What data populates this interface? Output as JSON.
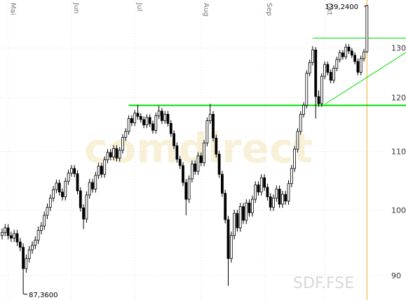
{
  "chart_data": {
    "type": "candlestick",
    "symbol": "SDF.FSE",
    "watermark": "comdirect",
    "log_scale": true,
    "grid": true,
    "ylim": [
      86.5,
      140.5
    ],
    "yticks": [
      90,
      100,
      110,
      120,
      130
    ],
    "categories": [
      null,
      null,
      "Mai",
      null,
      null,
      null,
      null,
      null,
      null,
      null,
      null,
      null,
      null,
      null,
      null,
      null,
      null,
      null,
      null,
      null,
      null,
      null,
      null,
      "Jun",
      null,
      null,
      null,
      null,
      null,
      null,
      null,
      null,
      null,
      null,
      null,
      null,
      null,
      null,
      null,
      null,
      null,
      null,
      null,
      null,
      "Jul",
      null,
      null,
      null,
      null,
      null,
      null,
      null,
      null,
      null,
      null,
      null,
      null,
      null,
      null,
      null,
      null,
      null,
      null,
      null,
      null,
      null,
      "Aug",
      null,
      null,
      null,
      null,
      null,
      null,
      null,
      null,
      null,
      null,
      null,
      null,
      null,
      null,
      null,
      null,
      null,
      null,
      null,
      null,
      "Sep",
      null,
      null,
      null,
      null,
      null,
      null,
      null,
      null,
      null,
      null,
      null,
      null,
      null,
      null,
      null,
      null,
      null,
      null,
      null,
      "Okt",
      null,
      null,
      null,
      null,
      null,
      null,
      null,
      null,
      null,
      null,
      null,
      null,
      null,
      null
    ],
    "open": [
      96.0,
      96.5,
      97.2,
      96.0,
      95.6,
      96.3,
      95.0,
      94.2,
      91.0,
      92.5,
      93.8,
      94.5,
      95.3,
      96.8,
      97.5,
      99.2,
      100.5,
      102.0,
      103.4,
      104.5,
      103.0,
      102.2,
      104.8,
      106.2,
      107.0,
      106.1,
      103.2,
      100.4,
      98.6,
      102.5,
      104.6,
      103.5,
      105.8,
      107.4,
      106.0,
      108.5,
      109.8,
      109.0,
      110.5,
      108.8,
      110.2,
      112.5,
      113.6,
      116.0,
      115.2,
      117.0,
      116.4,
      115.8,
      114.8,
      116.2,
      115.0,
      113.8,
      116.5,
      117.4,
      115.6,
      116.8,
      115.1,
      113.2,
      111.0,
      108.6,
      107.5,
      104.6,
      101.8,
      105.2,
      107.8,
      106.5,
      109.2,
      108.0,
      111.5,
      115.6,
      116.8,
      112.4,
      109.5,
      106.0,
      102.8,
      98.5,
      92.5,
      96.0,
      99.5,
      97.2,
      100.6,
      98.4,
      101.2,
      99.6,
      101.8,
      104.2,
      103.0,
      105.4,
      103.8,
      102.2,
      100.5,
      102.0,
      103.5,
      101.0,
      102.6,
      101.5,
      104.4,
      107.0,
      110.4,
      113.6,
      116.8,
      118.5,
      124.8,
      127.0,
      129.6,
      120.2,
      118.8,
      124.2,
      126.6,
      125.0,
      123.4,
      125.8,
      127.6,
      129.0,
      128.2,
      130.2,
      129.4,
      128.5,
      127.2,
      125.0,
      127.8,
      129.2
    ],
    "high": [
      97.1,
      97.8,
      97.8,
      96.6,
      96.9,
      96.9,
      95.6,
      94.8,
      93.1,
      94.4,
      95.1,
      95.9,
      97.4,
      98.1,
      99.8,
      101.1,
      102.6,
      104.0,
      105.1,
      105.1,
      103.6,
      105.4,
      106.8,
      107.6,
      107.6,
      106.7,
      103.8,
      101.0,
      103.1,
      105.2,
      105.2,
      106.4,
      108.0,
      108.0,
      109.1,
      110.4,
      110.4,
      111.1,
      111.1,
      110.8,
      113.1,
      114.2,
      116.6,
      116.6,
      117.6,
      118.6,
      117.0,
      116.4,
      116.8,
      116.8,
      115.6,
      117.1,
      118.4,
      118.0,
      117.4,
      117.4,
      115.7,
      113.8,
      111.6,
      109.2,
      108.1,
      105.2,
      105.8,
      108.4,
      108.4,
      109.8,
      109.8,
      112.1,
      116.2,
      118.8,
      117.4,
      113.0,
      110.1,
      106.6,
      103.4,
      99.1,
      96.6,
      100.1,
      100.1,
      101.2,
      101.2,
      101.8,
      101.8,
      102.4,
      104.8,
      104.8,
      106.0,
      106.0,
      104.4,
      102.8,
      102.6,
      104.1,
      104.1,
      103.2,
      103.2,
      105.0,
      107.6,
      111.0,
      114.2,
      117.4,
      119.1,
      125.4,
      127.6,
      130.4,
      130.2,
      121.4,
      124.8,
      127.2,
      127.2,
      125.6,
      126.4,
      128.2,
      129.6,
      129.6,
      130.9,
      130.8,
      130.0,
      129.1,
      127.8,
      128.4,
      129.8,
      139.24
    ],
    "low": [
      95.4,
      95.9,
      95.4,
      95.0,
      95.0,
      94.4,
      93.6,
      87.36,
      90.4,
      91.9,
      93.2,
      93.9,
      94.7,
      96.2,
      96.9,
      98.6,
      99.9,
      101.4,
      102.8,
      102.4,
      101.6,
      101.6,
      104.2,
      105.6,
      105.5,
      102.6,
      99.8,
      97.0,
      98.0,
      101.9,
      102.9,
      102.9,
      105.2,
      105.4,
      105.4,
      107.9,
      108.4,
      108.4,
      108.2,
      108.2,
      109.6,
      111.9,
      113.0,
      114.6,
      114.6,
      115.8,
      115.2,
      114.2,
      114.2,
      114.4,
      113.2,
      113.2,
      115.9,
      115.0,
      115.0,
      114.5,
      112.6,
      110.4,
      108.0,
      106.9,
      104.0,
      99.2,
      101.2,
      104.6,
      105.9,
      105.9,
      107.4,
      107.4,
      110.9,
      115.0,
      111.8,
      108.9,
      105.4,
      102.2,
      97.9,
      88.5,
      91.9,
      95.4,
      96.6,
      96.6,
      97.8,
      97.8,
      99.0,
      99.0,
      101.2,
      102.4,
      102.4,
      103.2,
      101.6,
      99.9,
      99.9,
      101.4,
      100.4,
      100.4,
      100.9,
      100.9,
      103.8,
      106.4,
      109.8,
      113.0,
      116.2,
      117.9,
      124.2,
      126.4,
      116.0,
      118.2,
      118.2,
      123.6,
      124.4,
      122.8,
      122.8,
      125.2,
      127.0,
      127.6,
      127.6,
      128.8,
      127.9,
      126.6,
      124.4,
      124.4,
      127.2,
      129.0
    ],
    "close": [
      96.5,
      97.2,
      96.0,
      95.6,
      96.3,
      95.0,
      94.2,
      91.0,
      92.5,
      93.8,
      94.5,
      95.3,
      96.8,
      97.5,
      99.2,
      100.5,
      102.0,
      103.4,
      104.5,
      103.0,
      102.2,
      104.8,
      106.2,
      107.0,
      106.1,
      103.2,
      100.4,
      98.6,
      102.5,
      104.6,
      103.5,
      105.8,
      107.4,
      106.0,
      108.5,
      109.8,
      109.0,
      110.5,
      108.8,
      110.2,
      112.5,
      113.6,
      116.0,
      115.2,
      117.0,
      116.4,
      115.8,
      114.8,
      116.2,
      115.0,
      113.8,
      116.5,
      117.4,
      115.6,
      116.8,
      115.1,
      113.2,
      111.0,
      108.6,
      107.5,
      104.6,
      101.8,
      105.2,
      107.8,
      106.5,
      109.2,
      108.0,
      111.5,
      115.6,
      116.8,
      112.4,
      109.5,
      106.0,
      102.8,
      98.5,
      92.5,
      96.0,
      99.5,
      97.2,
      100.6,
      98.4,
      101.2,
      99.6,
      101.8,
      104.2,
      103.0,
      105.4,
      103.8,
      102.2,
      100.5,
      102.0,
      103.5,
      101.0,
      102.6,
      101.5,
      104.4,
      107.0,
      110.4,
      113.6,
      116.8,
      118.5,
      124.8,
      127.0,
      129.6,
      120.2,
      118.8,
      124.2,
      126.6,
      125.0,
      123.4,
      125.8,
      127.6,
      129.0,
      128.2,
      130.2,
      129.4,
      128.5,
      127.2,
      125.0,
      127.8,
      129.2,
      139.24
    ],
    "extreme_labels": [
      {
        "index": 121,
        "value": 139.24,
        "label": "139,2400"
      },
      {
        "index": 7,
        "value": 87.36,
        "label": "87,3600"
      }
    ],
    "trendlines": [
      {
        "color": "#00e000",
        "width": 2,
        "x": [
          42,
          134
        ],
        "y": [
          118.5,
          118.5
        ]
      },
      {
        "color": "#00e000",
        "width": 1,
        "x": [
          103,
          134
        ],
        "y": [
          132.1,
          132.1
        ]
      },
      {
        "color": "#00e000",
        "width": 1,
        "x": [
          107,
          134
        ],
        "y": [
          118.7,
          129.1
        ]
      }
    ],
    "marker_color": "#f0b030"
  }
}
